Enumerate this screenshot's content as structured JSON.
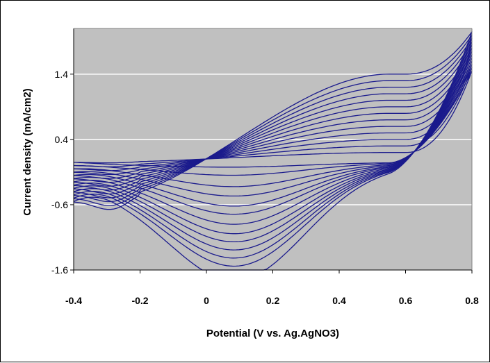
{
  "chart_data": {
    "type": "line",
    "title": "",
    "xlabel": "Potential (V vs. Ag.AgNO3)",
    "ylabel": "Current density (mA/cm2)",
    "xlim": [
      -0.4,
      0.8
    ],
    "ylim": [
      -1.6,
      2.1
    ],
    "x_ticks": [
      "-0.4",
      "-0.2",
      "0",
      "0.2",
      "0.4",
      "0.6",
      "0.8"
    ],
    "y_ticks": [
      "1.4",
      "0.4",
      "-0.6",
      "-1.6"
    ],
    "grid": "horizontal",
    "legend": "none",
    "plot_background": "#c0c0c0",
    "line_color": "#1a1a8c",
    "cycles": [
      {
        "cycle": 1,
        "anodic_plateau": 0.2,
        "cathodic_valley": -0.05,
        "start_current": 0.05,
        "end_current": 1.45
      },
      {
        "cycle": 2,
        "anodic_plateau": 0.3,
        "cathodic_valley": -0.15,
        "start_current": 0.0,
        "end_current": 1.5
      },
      {
        "cycle": 3,
        "anodic_plateau": 0.4,
        "cathodic_valley": -0.3,
        "start_current": -0.05,
        "end_current": 1.55
      },
      {
        "cycle": 4,
        "anodic_plateau": 0.5,
        "cathodic_valley": -0.42,
        "start_current": -0.1,
        "end_current": 1.6
      },
      {
        "cycle": 5,
        "anodic_plateau": 0.6,
        "cathodic_valley": -0.55,
        "start_current": -0.15,
        "end_current": 1.65
      },
      {
        "cycle": 6,
        "anodic_plateau": 0.7,
        "cathodic_valley": -0.65,
        "start_current": -0.2,
        "end_current": 1.7
      },
      {
        "cycle": 7,
        "anodic_plateau": 0.8,
        "cathodic_valley": -0.78,
        "start_current": -0.25,
        "end_current": 1.75
      },
      {
        "cycle": 8,
        "anodic_plateau": 0.9,
        "cathodic_valley": -0.9,
        "start_current": -0.3,
        "end_current": 1.8
      },
      {
        "cycle": 9,
        "anodic_plateau": 1.0,
        "cathodic_valley": -1.0,
        "start_current": -0.35,
        "end_current": 1.85
      },
      {
        "cycle": 10,
        "anodic_plateau": 1.1,
        "cathodic_valley": -1.1,
        "start_current": -0.4,
        "end_current": 1.9
      },
      {
        "cycle": 11,
        "anodic_plateau": 1.2,
        "cathodic_valley": -1.2,
        "start_current": -0.45,
        "end_current": 1.95
      },
      {
        "cycle": 12,
        "anodic_plateau": 1.3,
        "cathodic_valley": -1.3,
        "start_current": -0.5,
        "end_current": 2.0
      },
      {
        "cycle": 13,
        "anodic_plateau": 1.4,
        "cathodic_valley": -1.5,
        "start_current": -0.55,
        "end_current": 2.05
      }
    ]
  }
}
